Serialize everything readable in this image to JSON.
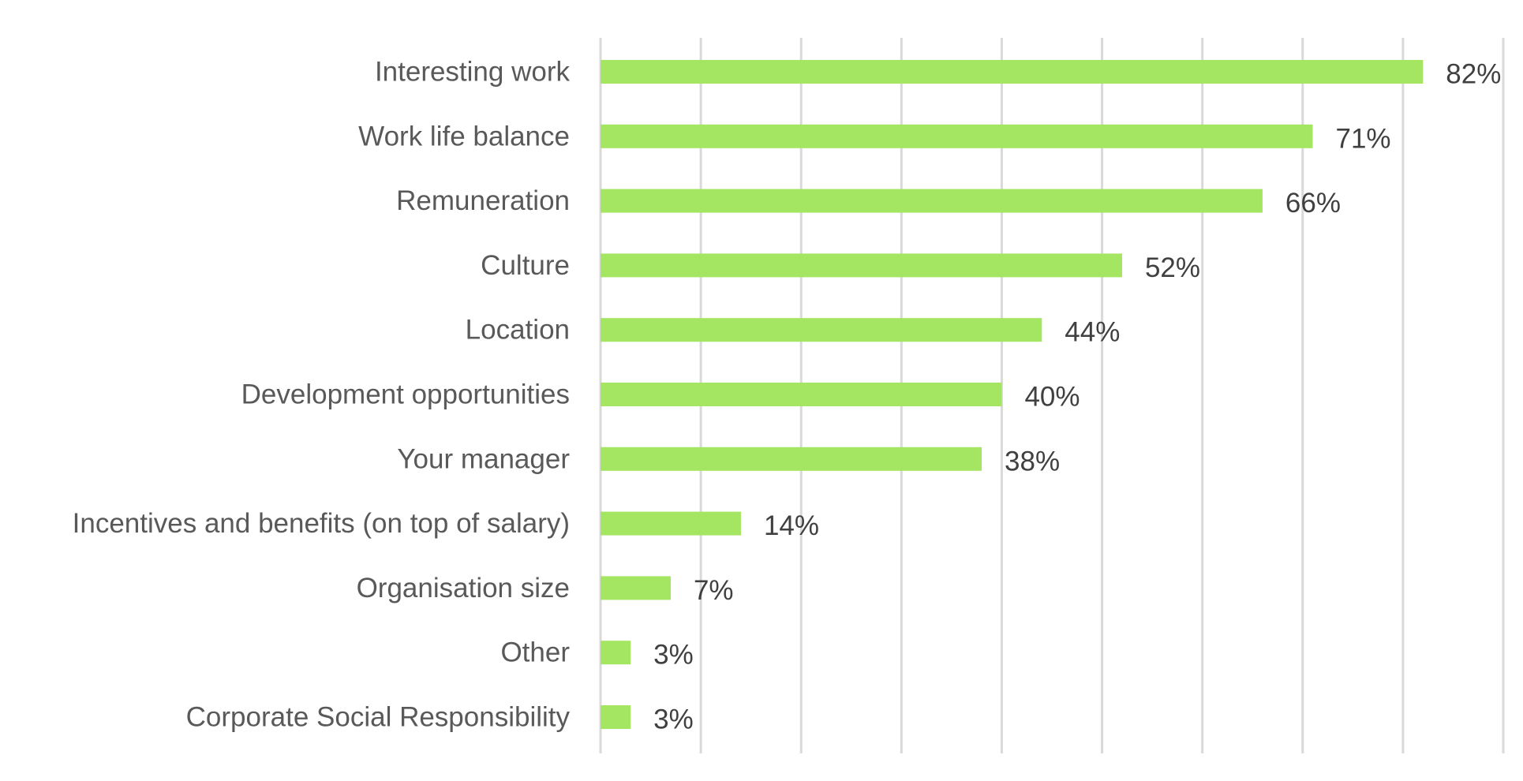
{
  "chart_data": {
    "type": "bar",
    "orientation": "horizontal",
    "categories": [
      "Interesting work",
      "Work life balance",
      "Remuneration",
      "Culture",
      "Location",
      "Development opportunities",
      "Your manager",
      "Incentives and benefits (on top of salary)",
      "Organisation size",
      "Other",
      "Corporate Social Responsibility"
    ],
    "values": [
      82,
      71,
      66,
      52,
      44,
      40,
      38,
      14,
      7,
      3,
      3
    ],
    "data_labels": [
      "82%",
      "71%",
      "66%",
      "52%",
      "44%",
      "40%",
      "38%",
      "14%",
      "7%",
      "3%",
      "3%"
    ],
    "xlim": [
      0,
      90
    ],
    "grid_step": 10,
    "grid": true,
    "legend": "none",
    "bar_color": "#a4e562",
    "grid_color": "#d9d9d9",
    "title": "",
    "xlabel": "",
    "ylabel": ""
  }
}
